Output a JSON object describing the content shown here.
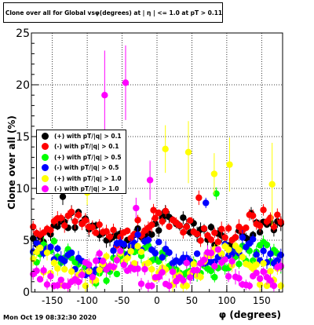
{
  "chart_data": {
    "type": "scatter",
    "title": "Clone  over all for Global vsφ(degrees) at | η | <= 1.0 at pT > 0.11",
    "xlabel": "φ (degrees)",
    "ylabel": "Clone  over all (%)",
    "xlim": [
      -180,
      180
    ],
    "ylim": [
      0,
      25
    ],
    "xticks": [
      -150,
      -100,
      -50,
      0,
      50,
      100,
      150
    ],
    "yticks": [
      0,
      5,
      10,
      15,
      20,
      25
    ],
    "grid": true,
    "legend_position": "left-middle",
    "series": [
      {
        "name": "(+) with pT/|q| > 0.1",
        "color": "#000000",
        "base": 6.0,
        "spread": 0.9,
        "phase": 0.3,
        "outliers": [
          {
            "x": -135,
            "y": 9.2,
            "err": 0.8
          },
          {
            "x": 12,
            "y": 7.8,
            "err": 0.6
          },
          {
            "x": 135,
            "y": 7.6,
            "err": 0.6
          }
        ]
      },
      {
        "name": "(-) with pT/|q| > 0.1",
        "color": "#ff0000",
        "base": 6.2,
        "spread": 0.9,
        "phase": 1.1,
        "outliers": [
          {
            "x": 60,
            "y": 9.1,
            "err": 0.7
          },
          {
            "x": -5,
            "y": 7.9,
            "err": 0.6
          }
        ]
      },
      {
        "name": "(+) with pT/|q| > 0.5",
        "color": "#00ff00",
        "base": 3.0,
        "spread": 1.1,
        "phase": 2.0,
        "outliers": [
          {
            "x": 85,
            "y": 9.5,
            "err": 0.6
          }
        ]
      },
      {
        "name": "(-) with pT/|q| > 0.5",
        "color": "#0000ff",
        "base": 3.6,
        "spread": 1.0,
        "phase": 2.7,
        "outliers": [
          {
            "x": 70,
            "y": 8.6,
            "err": 0.5
          }
        ]
      },
      {
        "name": "(+) with pT/|q| > 1.0",
        "color": "#ffff00",
        "base": 2.4,
        "spread": 1.2,
        "phase": 3.5,
        "outliers": [
          {
            "x": 12,
            "y": 13.8,
            "err": 2.3
          },
          {
            "x": 45,
            "y": 13.5,
            "err": 3.0
          },
          {
            "x": 82,
            "y": 11.4,
            "err": 2.0
          },
          {
            "x": 104,
            "y": 12.3,
            "err": 2.6
          },
          {
            "x": 165,
            "y": 10.4,
            "err": 4.0
          },
          {
            "x": -100,
            "y": 9.6,
            "err": 1.2
          }
        ]
      },
      {
        "name": "(-) with pT/|q| > 1.0",
        "color": "#ff00ff",
        "base": 2.0,
        "spread": 1.1,
        "phase": 4.4,
        "outliers": [
          {
            "x": -75,
            "y": 19.0,
            "err": 4.3
          },
          {
            "x": -45,
            "y": 20.2,
            "err": 3.6
          },
          {
            "x": -10,
            "y": 10.8,
            "err": 1.9
          },
          {
            "x": -30,
            "y": 8.1,
            "err": 1.0
          }
        ]
      }
    ]
  },
  "footer": {
    "date": "Mon Oct 19 08:32:30 2020"
  }
}
